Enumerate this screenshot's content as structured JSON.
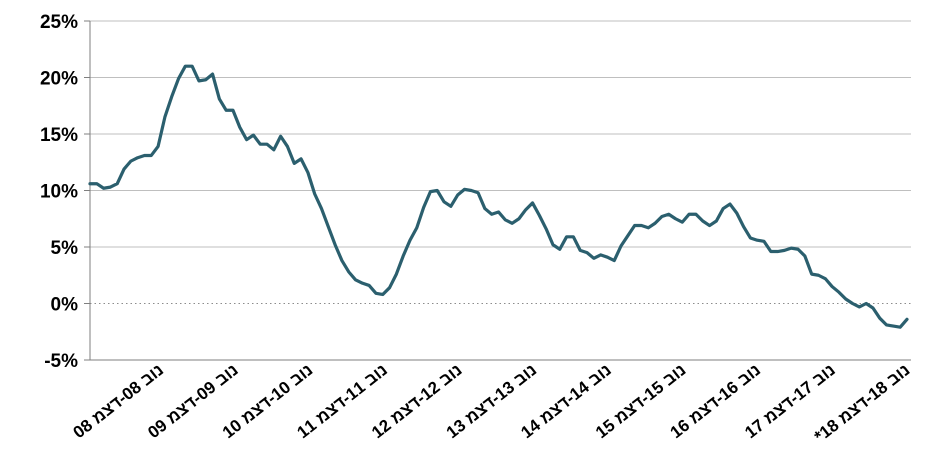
{
  "chart_data": {
    "type": "line",
    "title": "",
    "xlabel": "",
    "ylabel": "",
    "ylim": [
      -5,
      25
    ],
    "yticks": [
      -5,
      0,
      5,
      10,
      15,
      20,
      25
    ],
    "ytick_labels": [
      "-5%",
      "0%",
      "5%",
      "10%",
      "15%",
      "20%",
      "25%"
    ],
    "grid": "horizontal",
    "zero_line": "dotted",
    "x_labels": [
      "נוב 08-דצמ 08",
      "נוב 09-דצמ 09",
      "נוב 10-דצמ 10",
      "נוב 11-דצמ 11",
      "נוב 12-דצמ 12",
      "נוב 13-דצמ 13",
      "נוב 14-דצמ 14",
      "נוב 15-דצמ 15",
      "נוב 16-דצמ 16",
      "נוב 17-דצמ 17",
      "נוב 18-דצמ 18*"
    ],
    "line_color": "#2b5f6e",
    "series": [
      {
        "values": [
          10.6,
          10.6,
          10.2,
          10.3,
          10.6,
          11.9,
          12.6,
          12.9,
          13.1,
          13.1,
          13.9,
          16.5,
          18.3,
          19.9,
          21.0,
          21.0,
          19.7,
          19.8,
          20.3,
          18.1,
          17.1,
          17.1,
          15.6,
          14.5,
          14.9,
          14.1,
          14.1,
          13.6,
          14.8,
          13.9,
          12.4,
          12.8,
          11.6,
          9.7,
          8.4,
          6.8,
          5.2,
          3.8,
          2.8,
          2.1,
          1.8,
          1.6,
          0.9,
          0.8,
          1.4,
          2.6,
          4.2,
          5.6,
          6.7,
          8.5,
          9.9,
          10.0,
          9.0,
          8.6,
          9.6,
          10.1,
          10.0,
          9.8,
          8.4,
          7.9,
          8.1,
          7.4,
          7.1,
          7.5,
          8.3,
          8.9,
          7.8,
          6.6,
          5.2,
          4.8,
          5.9,
          5.9,
          4.7,
          4.5,
          4.0,
          4.3,
          4.1,
          3.8,
          5.1,
          6.0,
          6.9,
          6.9,
          6.7,
          7.1,
          7.7,
          7.9,
          7.5,
          7.2,
          7.9,
          7.9,
          7.3,
          6.9,
          7.3,
          8.4,
          8.8,
          8.0,
          6.8,
          5.8,
          5.6,
          5.5,
          4.6,
          4.6,
          4.7,
          4.9,
          4.8,
          4.2,
          2.6,
          2.5,
          2.2,
          1.5,
          1.0,
          0.4,
          0.0,
          -0.3,
          0.0,
          -0.4,
          -1.3,
          -1.9,
          -2.0,
          -2.1,
          -1.4
        ]
      }
    ]
  }
}
